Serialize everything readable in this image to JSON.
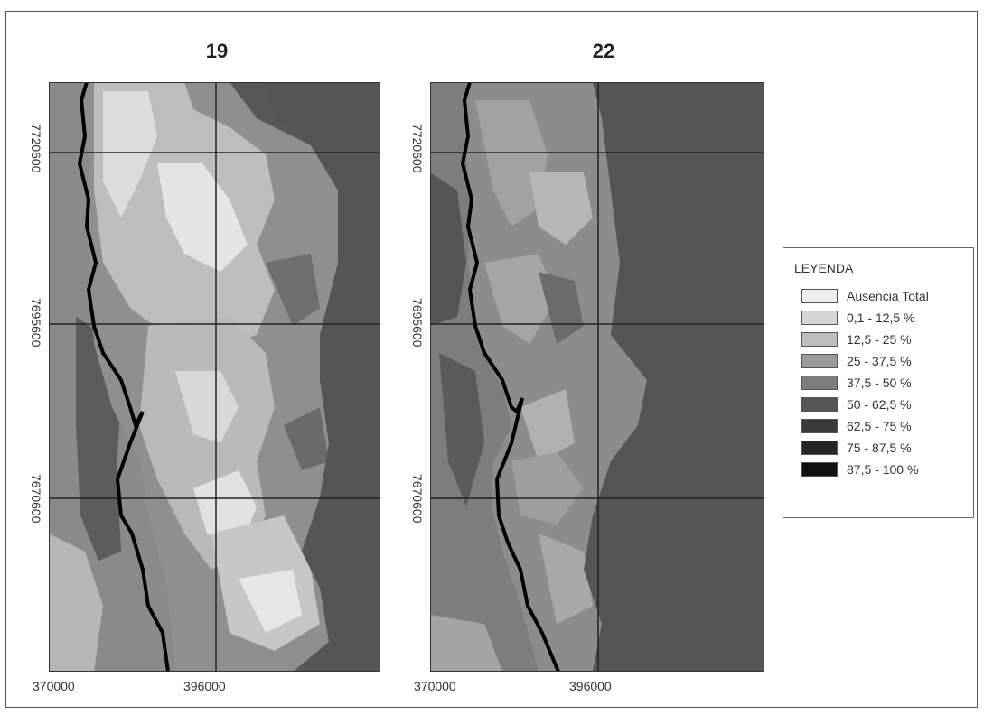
{
  "maps": [
    {
      "title": "19",
      "y_ticks": [
        "7720600",
        "7695600",
        "7670600"
      ],
      "x_ticks": [
        "370000",
        "396000"
      ]
    },
    {
      "title": "22",
      "y_ticks": [
        "7720600",
        "7695600",
        "7670600"
      ],
      "x_ticks": [
        "370000",
        "396000"
      ]
    }
  ],
  "legend": {
    "title": "LEYENDA",
    "classes": [
      {
        "label": "Ausencia Total",
        "color": "#eeeeee"
      },
      {
        "label": "0,1 - 12,5 %",
        "color": "#d6d6d6"
      },
      {
        "label": "12,5 - 25 %",
        "color": "#bdbdbd"
      },
      {
        "label": "25 - 37,5 %",
        "color": "#9b9b9b"
      },
      {
        "label": "37,5 - 50 %",
        "color": "#7c7c7c"
      },
      {
        "label": "50 - 62,5 %",
        "color": "#555555"
      },
      {
        "label": "62,5 - 75 %",
        "color": "#3a3a3a"
      },
      {
        "label": "75 - 87,5 %",
        "color": "#262626"
      },
      {
        "label": "87,5 - 100 %",
        "color": "#111111"
      }
    ]
  }
}
